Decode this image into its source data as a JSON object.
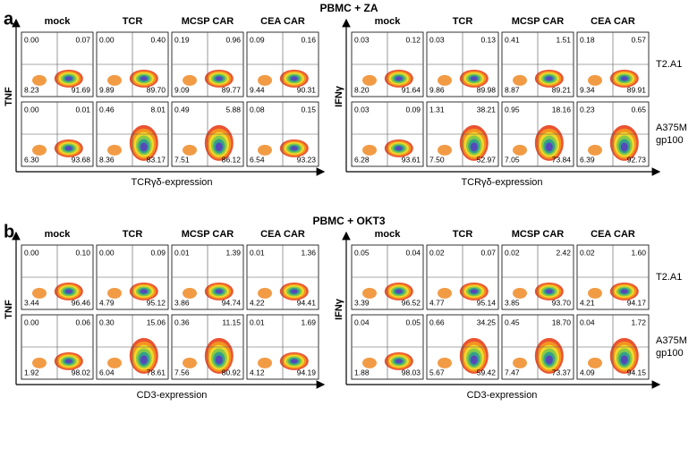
{
  "panels": [
    {
      "letter": "a",
      "title": "PBMC + ZA",
      "x_label": "TCRγδ-expression",
      "row_labels": [
        [
          "T2.A1"
        ],
        [
          "A375M",
          "gp100"
        ]
      ],
      "blocks": [
        {
          "y_label": "TNF",
          "columns": [
            "mock",
            "TCR",
            "MCSP CAR",
            "CEA CAR"
          ],
          "plots": [
            [
              [
                "0.00",
                "0.07",
                "8.23",
                "91.69"
              ],
              [
                "0.00",
                "0.40",
                "9.89",
                "89.70"
              ],
              [
                "0.19",
                "0.96",
                "9.09",
                "89.77"
              ],
              [
                "0.09",
                "0.16",
                "9.44",
                "90.31"
              ]
            ],
            [
              [
                "0.00",
                "0.01",
                "6.30",
                "93.68"
              ],
              [
                "0.46",
                "8.01",
                "8.36",
                "83.17"
              ],
              [
                "0.49",
                "5.88",
                "7.51",
                "86.12"
              ],
              [
                "0.08",
                "0.15",
                "6.54",
                "93.23"
              ]
            ]
          ]
        },
        {
          "y_label": "IFNγ",
          "columns": [
            "mock",
            "TCR",
            "MCSP CAR",
            "CEA CAR"
          ],
          "plots": [
            [
              [
                "0.03",
                "0.12",
                "8.20",
                "91.64"
              ],
              [
                "0.03",
                "0.13",
                "9.86",
                "89.98"
              ],
              [
                "0.41",
                "1.51",
                "8.87",
                "89.21"
              ],
              [
                "0.18",
                "0.57",
                "9.34",
                "89.91"
              ]
            ],
            [
              [
                "0.03",
                "0.09",
                "6.28",
                "93.61"
              ],
              [
                "1.31",
                "38.21",
                "7.50",
                "52.97"
              ],
              [
                "0.95",
                "18.16",
                "7.05",
                "73.84"
              ],
              [
                "0.23",
                "0.65",
                "6.39",
                "92.73"
              ]
            ]
          ]
        }
      ]
    },
    {
      "letter": "b",
      "title": "PBMC + OKT3",
      "x_label": "CD3-expression",
      "row_labels": [
        [
          "T2.A1"
        ],
        [
          "A375M",
          "gp100"
        ]
      ],
      "blocks": [
        {
          "y_label": "TNF",
          "columns": [
            "mock",
            "TCR",
            "MCSP CAR",
            "CEA CAR"
          ],
          "plots": [
            [
              [
                "0.00",
                "0.10",
                "3.44",
                "96.46"
              ],
              [
                "0.00",
                "0.09",
                "4.79",
                "95.12"
              ],
              [
                "0.01",
                "1.39",
                "3.86",
                "94.74"
              ],
              [
                "0.01",
                "1.36",
                "4.22",
                "94.41"
              ]
            ],
            [
              [
                "0.00",
                "0.06",
                "1.92",
                "98.02"
              ],
              [
                "0.30",
                "15.06",
                "6.04",
                "78.61"
              ],
              [
                "0.36",
                "11.15",
                "7.56",
                "80.92"
              ],
              [
                "0.01",
                "1.69",
                "4.12",
                "94.19"
              ]
            ]
          ]
        },
        {
          "y_label": "IFNγ",
          "columns": [
            "mock",
            "TCR",
            "MCSP CAR",
            "CEA CAR"
          ],
          "plots": [
            [
              [
                "0.05",
                "0.04",
                "3.39",
                "96.52"
              ],
              [
                "0.02",
                "0.07",
                "4.77",
                "95.14"
              ],
              [
                "0.02",
                "2.42",
                "3.85",
                "93.70"
              ],
              [
                "0.02",
                "1.60",
                "4.21",
                "94.17"
              ]
            ],
            [
              [
                "0.04",
                "0.05",
                "1.88",
                "98.03"
              ],
              [
                "0.66",
                "34.25",
                "5.67",
                "59.42"
              ],
              [
                "0.45",
                "18.70",
                "7.47",
                "73.37"
              ],
              [
                "0.04",
                "1.72",
                "4.09",
                "94.15"
              ]
            ]
          ]
        }
      ]
    }
  ]
}
